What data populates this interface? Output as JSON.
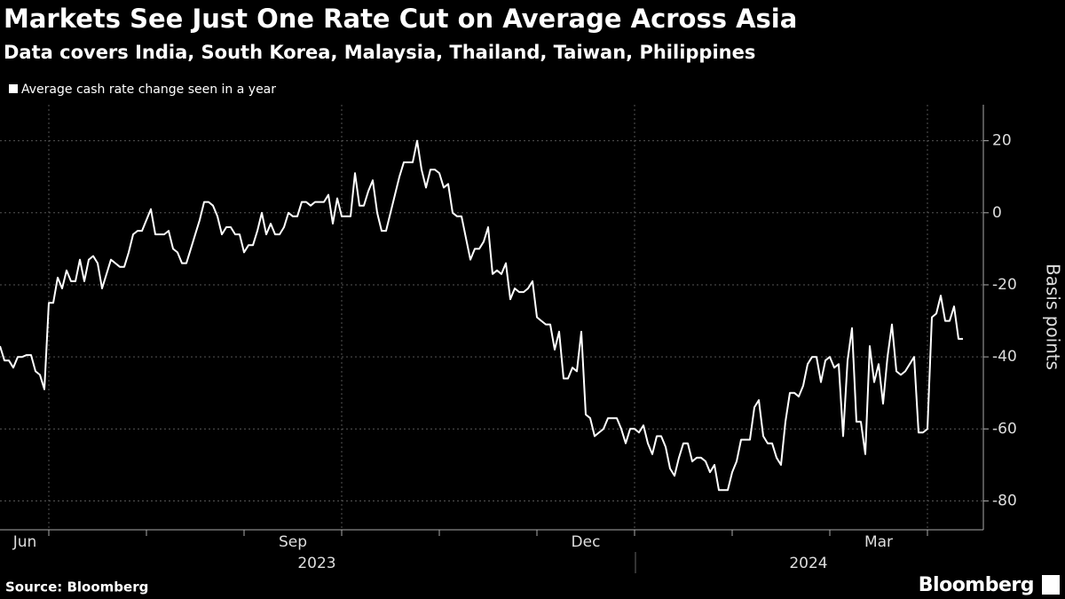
{
  "chart_data": {
    "type": "line",
    "title": "Markets See Just One Rate Cut on Average Across Asia",
    "subtitle": "Data covers India, South Korea, Malaysia, Thailand, Taiwan, Philippines",
    "y_label": "Basis points",
    "source": "Source: Bloomberg",
    "brand": "Bloomberg",
    "legend": "top-left",
    "grid": true,
    "ylim": [
      -88,
      30
    ],
    "yticks": [
      20,
      0,
      -20,
      -40,
      -60,
      -80
    ],
    "x_groups": [
      "2023",
      "2024"
    ],
    "categories": [
      "Jun",
      null,
      null,
      null,
      null,
      null,
      null,
      null,
      null,
      null,
      null,
      null,
      null,
      null,
      null,
      null,
      null,
      null,
      null,
      null,
      null,
      null,
      null,
      null,
      null,
      null,
      null,
      null,
      null,
      null,
      null,
      null,
      null,
      null,
      null,
      null,
      null,
      null,
      null,
      null,
      null,
      null,
      null,
      null,
      null,
      null,
      null,
      null,
      null,
      null,
      null,
      null,
      null,
      null,
      null,
      null,
      null,
      null,
      null,
      null,
      null,
      null,
      null,
      null,
      null,
      null,
      "Sep",
      null,
      null,
      null,
      null,
      null,
      null,
      null,
      null,
      null,
      null,
      null,
      null,
      null,
      null,
      null,
      null,
      null,
      null,
      null,
      null,
      null,
      null,
      null,
      null,
      null,
      null,
      null,
      null,
      null,
      null,
      null,
      null,
      null,
      null,
      null,
      null,
      null,
      null,
      null,
      null,
      null,
      null,
      null,
      null,
      null,
      null,
      null,
      null,
      null,
      null,
      null,
      null,
      null,
      null,
      null,
      null,
      null,
      null,
      null,
      null,
      null,
      null,
      null,
      null,
      null,
      "Dec",
      null,
      null,
      null,
      null,
      null,
      null,
      null,
      null,
      null,
      null,
      null,
      null,
      null,
      null,
      null,
      null,
      null,
      null,
      null,
      null,
      null,
      null,
      null,
      null,
      null,
      null,
      null,
      null,
      null,
      null,
      null,
      null,
      null,
      null,
      null,
      null,
      null,
      null,
      null,
      null,
      null,
      null,
      null,
      null,
      null,
      null,
      null,
      null,
      null,
      null,
      null,
      null,
      null,
      null,
      null,
      null,
      null,
      null,
      null,
      null,
      null,
      null,
      null,
      null,
      null,
      "Mar",
      null,
      null,
      null,
      null,
      null,
      null,
      null,
      null,
      null,
      null,
      null,
      null,
      null,
      null,
      null,
      null,
      null,
      null,
      null
    ],
    "series": [
      {
        "name": "Average cash rate change seen in a year",
        "color": "#ffffff",
        "values": [
          -37,
          -41,
          -41,
          -43,
          -40,
          -40,
          -39.5,
          -39.5,
          -44,
          -45,
          -49,
          -25,
          -25,
          -18,
          -21,
          -16,
          -19,
          -19,
          -13,
          -19,
          -13,
          -12,
          -14,
          -21,
          -17,
          -13,
          -14,
          -15,
          -15,
          -11,
          -6,
          -5,
          -5,
          -2,
          1,
          -6,
          -6,
          -6,
          -5,
          -10,
          -11,
          -14,
          -14,
          -10,
          -6,
          -2,
          3,
          3,
          2,
          -1,
          -6,
          -4,
          -4,
          -6,
          -6,
          -11,
          -9,
          -9,
          -5,
          0,
          -6,
          -3,
          -6,
          -6,
          -4,
          0,
          -1,
          -1,
          3,
          3,
          2,
          3,
          3,
          3,
          5,
          -3,
          4,
          -1,
          -1,
          -1,
          11,
          2,
          2,
          6,
          9,
          0,
          -5,
          -5,
          0,
          5,
          10,
          14,
          14,
          14,
          20,
          12,
          7,
          12,
          12,
          11,
          7,
          8,
          0,
          -1,
          -1,
          -7,
          -13,
          -10,
          -10,
          -8,
          -4,
          -17,
          -16,
          -17,
          -14,
          -24,
          -21,
          -22,
          -22,
          -21,
          -19,
          -29,
          -30,
          -31,
          -31,
          -38,
          -33,
          -46,
          -46,
          -43,
          -44,
          -33,
          -56,
          -57,
          -62,
          -61,
          -60,
          -57,
          -57,
          -57,
          -60,
          -64,
          -60,
          -60,
          -61,
          -59,
          -64,
          -67,
          -62,
          -62,
          -65,
          -71,
          -73,
          -68,
          -64,
          -64,
          -69,
          -68,
          -68,
          -69,
          -72,
          -70,
          -77,
          -77,
          -77,
          -72,
          -69,
          -63,
          -63,
          -63,
          -54,
          -52,
          -62,
          -64,
          -64,
          -68,
          -70,
          -58,
          -50,
          -50,
          -51,
          -48,
          -42,
          -40,
          -40,
          -47,
          -41,
          -40,
          -43,
          -42,
          -62,
          -41,
          -32,
          -58,
          -58,
          -67,
          -37,
          -47,
          -42,
          -53,
          -40,
          -31,
          -44,
          -45,
          -44,
          -42,
          -40,
          -61,
          -61,
          -60,
          -29,
          -28,
          -23,
          -30,
          -30,
          -26,
          -35,
          -35
        ]
      }
    ]
  }
}
